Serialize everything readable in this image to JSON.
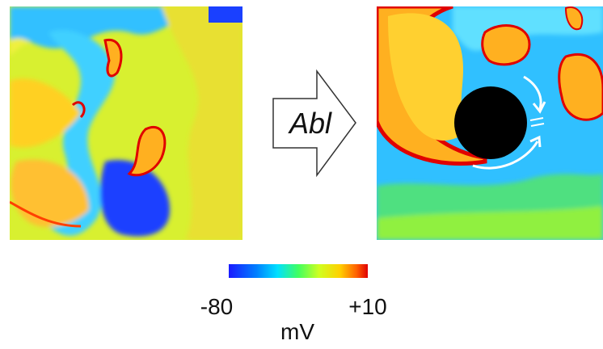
{
  "arrow_label": "Abl",
  "colorbar": {
    "min_label": "-80",
    "max_label": "+10",
    "unit": "mV"
  }
}
